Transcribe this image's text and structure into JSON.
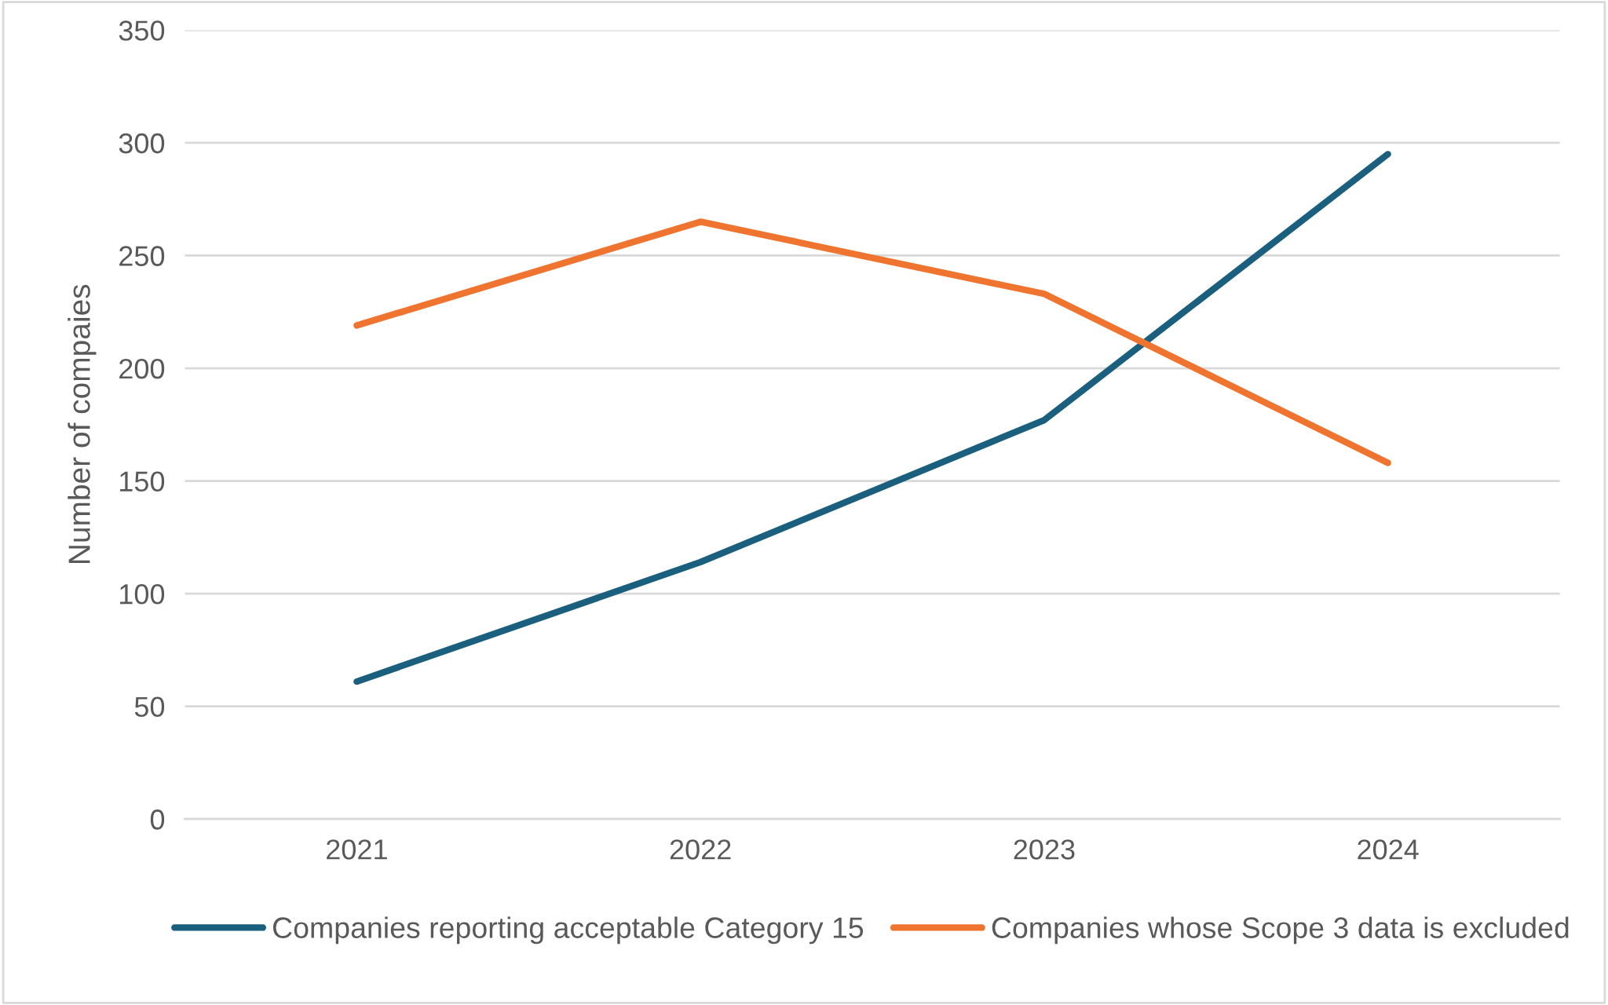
{
  "chart_data": {
    "type": "line",
    "ylabel": "Number of compaies",
    "categories": [
      "2021",
      "2022",
      "2023",
      "2024"
    ],
    "series": [
      {
        "name": "Companies reporting acceptable Category 15",
        "color": "#1b5f7f",
        "values": [
          61,
          114,
          177,
          295
        ]
      },
      {
        "name": "Companies whose Scope 3 data is excluded",
        "color": "#ee7430",
        "values": [
          219,
          265,
          233,
          158
        ]
      }
    ],
    "ylim": [
      0,
      350
    ],
    "yticks": [
      0,
      50,
      100,
      150,
      200,
      250,
      300,
      350
    ],
    "grid": "y",
    "legend": "bottom",
    "marker": "none",
    "line_style": "solid"
  }
}
